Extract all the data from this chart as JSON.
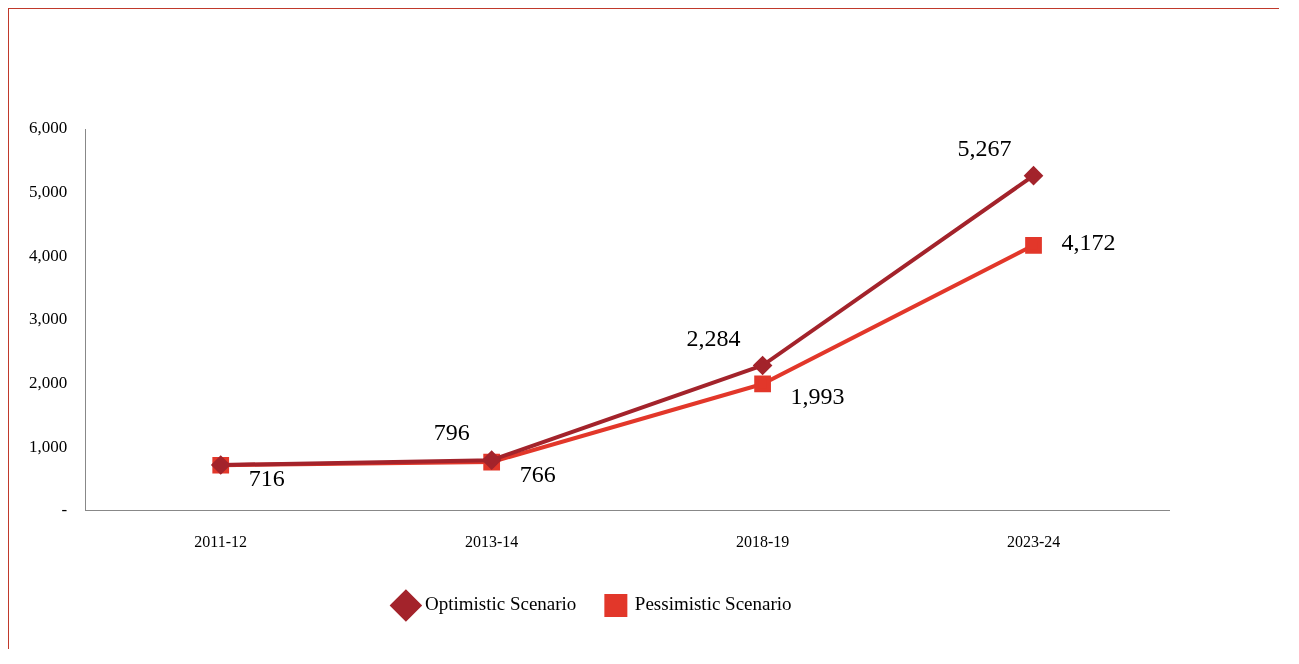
{
  "chart_data": {
    "type": "line",
    "categories": [
      "2011-12",
      "2013-14",
      "2018-19",
      "2023-24"
    ],
    "series": [
      {
        "name": "Optimistic Scenario",
        "color": "#a3232b",
        "marker": "diamond",
        "values": [
          720,
          796,
          2284,
          5267
        ],
        "value_labels": [
          null,
          "796",
          "2,284",
          "5,267"
        ]
      },
      {
        "name": "Pessimistic Scenario",
        "color": "#e2372a",
        "marker": "square",
        "values": [
          716,
          766,
          1993,
          4172
        ],
        "value_labels": [
          "716",
          "766",
          "1,993",
          "4,172"
        ]
      }
    ],
    "ylim": [
      0,
      6000
    ],
    "yticks": [
      {
        "value": 0,
        "label": "-"
      },
      {
        "value": 1000,
        "label": "1,000"
      },
      {
        "value": 2000,
        "label": "2,000"
      },
      {
        "value": 3000,
        "label": "3,000"
      },
      {
        "value": 4000,
        "label": "4,000"
      },
      {
        "value": 5000,
        "label": "5,000"
      },
      {
        "value": 6000,
        "label": "6,000"
      }
    ],
    "grid": false,
    "legend": "bottom",
    "line_style": "solid"
  }
}
